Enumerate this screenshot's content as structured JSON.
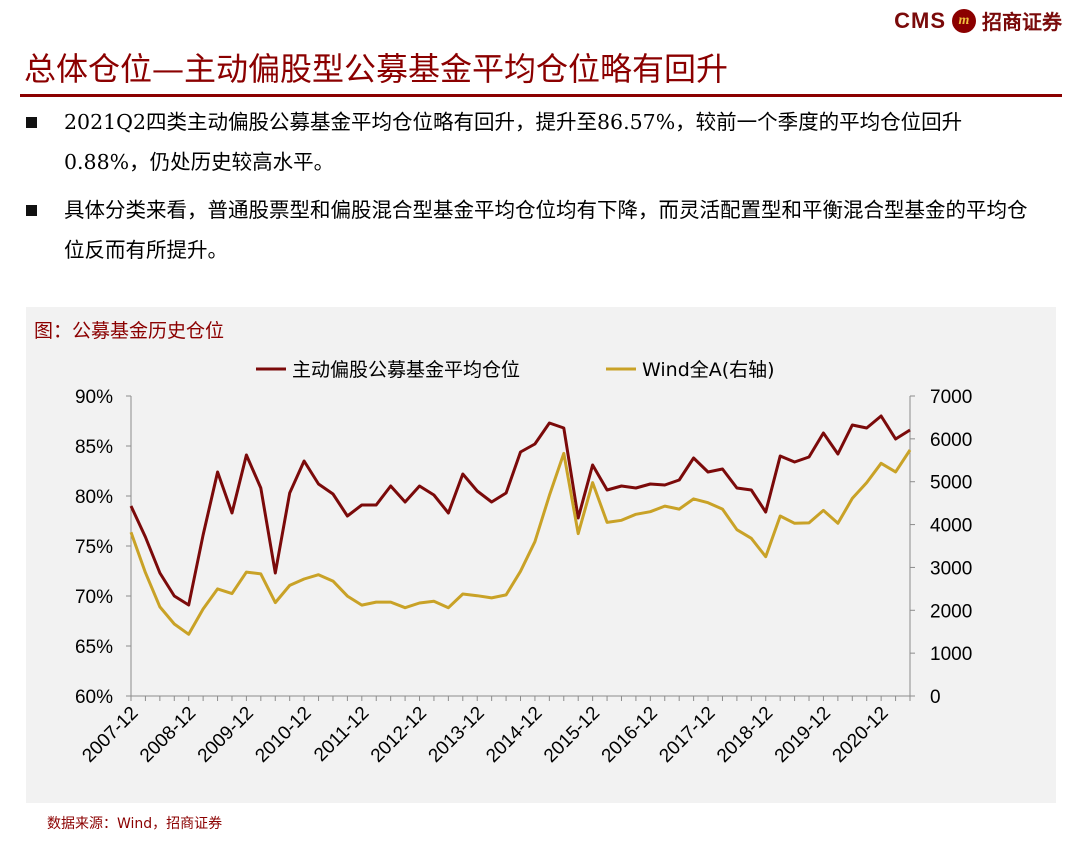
{
  "brand": {
    "cms": "CMS",
    "logo_glyph": "m",
    "name": "招商证券"
  },
  "page": {
    "title": "总体仓位—主动偏股型公募基金平均仓位略有回升",
    "bullets": [
      "2021Q2四类主动偏股公募基金平均仓位略有回升，提升至86.57%，较前一个季度的平均仓位回升0.88%，仍处历史较高水平。",
      "具体分类来看，普通股票型和偏股混合型基金平均仓位均有下降，而灵活配置型和平衡混合型基金的平均仓位反而有所提升。"
    ]
  },
  "chart_title": "图：公募基金历史仓位",
  "source": "数据来源：Wind，招商证券",
  "chart_data": {
    "type": "line",
    "x": [
      "2007-12",
      "2008-03",
      "2008-06",
      "2008-09",
      "2008-12",
      "2009-03",
      "2009-06",
      "2009-09",
      "2009-12",
      "2010-03",
      "2010-06",
      "2010-09",
      "2010-12",
      "2011-03",
      "2011-06",
      "2011-09",
      "2011-12",
      "2012-03",
      "2012-06",
      "2012-09",
      "2012-12",
      "2013-03",
      "2013-06",
      "2013-09",
      "2013-12",
      "2014-03",
      "2014-06",
      "2014-09",
      "2014-12",
      "2015-03",
      "2015-06",
      "2015-09",
      "2015-12",
      "2016-03",
      "2016-06",
      "2016-09",
      "2016-12",
      "2017-03",
      "2017-06",
      "2017-09",
      "2017-12",
      "2018-03",
      "2018-06",
      "2018-09",
      "2018-12",
      "2019-03",
      "2019-06",
      "2019-09",
      "2019-12",
      "2020-03",
      "2020-06",
      "2020-09",
      "2020-12",
      "2021-03",
      "2021-06"
    ],
    "x_tick_labels": [
      "2007-12",
      "2008-12",
      "2009-12",
      "2010-12",
      "2011-12",
      "2012-12",
      "2013-12",
      "2014-12",
      "2015-12",
      "2016-12",
      "2017-12",
      "2018-12",
      "2019-12",
      "2020-12"
    ],
    "series": [
      {
        "name": "主动偏股公募基金平均仓位",
        "axis": "left",
        "color": "#7b0a0a",
        "values": [
          79.0,
          75.9,
          72.3,
          70.0,
          69.1,
          76.1,
          82.4,
          78.3,
          84.1,
          80.8,
          72.3,
          80.3,
          83.5,
          81.2,
          80.2,
          78.0,
          79.1,
          79.1,
          81.0,
          79.4,
          81.0,
          80.1,
          78.3,
          82.2,
          80.5,
          79.4,
          80.3,
          84.4,
          85.2,
          87.3,
          86.8,
          77.8,
          83.1,
          80.6,
          81.0,
          80.8,
          81.2,
          81.1,
          81.6,
          83.8,
          82.4,
          82.7,
          80.8,
          80.6,
          78.4,
          84.0,
          83.4,
          83.9,
          86.3,
          84.2,
          87.1,
          86.8,
          88.0,
          85.7,
          86.6
        ]
      },
      {
        "name": "Wind全A(右轴)",
        "axis": "right",
        "color": "#c9a227",
        "values": [
          3820,
          2880,
          2080,
          1680,
          1440,
          2030,
          2500,
          2390,
          2890,
          2850,
          2180,
          2580,
          2730,
          2830,
          2680,
          2330,
          2120,
          2190,
          2190,
          2060,
          2170,
          2210,
          2060,
          2380,
          2340,
          2290,
          2360,
          2910,
          3600,
          4680,
          5660,
          3790,
          4980,
          4050,
          4100,
          4240,
          4300,
          4430,
          4360,
          4600,
          4510,
          4360,
          3880,
          3680,
          3250,
          4200,
          4030,
          4040,
          4330,
          4030,
          4610,
          4980,
          5430,
          5230,
          5740
        ]
      }
    ],
    "y_left": {
      "ticks": [
        "60%",
        "65%",
        "70%",
        "75%",
        "80%",
        "85%",
        "90%"
      ],
      "range": [
        60,
        90
      ]
    },
    "y_right": {
      "ticks": [
        "0",
        "1000",
        "2000",
        "3000",
        "4000",
        "5000",
        "6000",
        "7000"
      ],
      "range": [
        0,
        7000
      ]
    },
    "legend_position": "top-center",
    "grid": false
  }
}
